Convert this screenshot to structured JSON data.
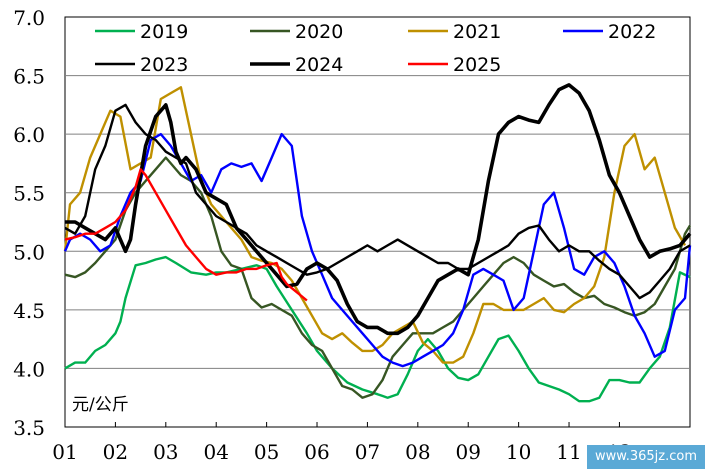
{
  "chart_data": {
    "type": "line",
    "unit_label": "元/公斤",
    "ylim": [
      3.5,
      7.0
    ],
    "yticks": [
      "3.5",
      "4.0",
      "4.5",
      "5.0",
      "5.5",
      "6.0",
      "6.5",
      "7.0"
    ],
    "ytick_values": [
      3.5,
      4.0,
      4.5,
      5.0,
      5.5,
      6.0,
      6.5,
      7.0
    ],
    "xticks": [
      "01",
      "02",
      "03",
      "04",
      "05",
      "06",
      "07",
      "08",
      "09",
      "10",
      "11",
      "12"
    ],
    "xlim": [
      0,
      12.4
    ],
    "legend_position": "top",
    "series": [
      {
        "name": "2019",
        "color": "#00b050",
        "width": 2.4,
        "x": [
          0,
          0.2,
          0.4,
          0.6,
          0.8,
          1.0,
          1.1,
          1.2,
          1.4,
          1.6,
          1.8,
          2.0,
          2.2,
          2.5,
          2.8,
          3.0,
          3.2,
          3.5,
          3.8,
          4.0,
          4.2,
          4.5,
          4.8,
          5.0,
          5.3,
          5.6,
          5.9,
          6.2,
          6.4,
          6.6,
          6.8,
          7.0,
          7.2,
          7.4,
          7.6,
          7.8,
          8.0,
          8.2,
          8.4,
          8.6,
          8.8,
          9.0,
          9.2,
          9.4,
          9.6,
          9.8,
          10.0,
          10.2,
          10.4,
          10.6,
          10.8,
          11.0,
          11.2,
          11.4,
          11.6,
          11.8,
          12.0,
          12.2,
          12.4
        ],
        "y": [
          4.0,
          4.05,
          4.05,
          4.15,
          4.2,
          4.3,
          4.4,
          4.6,
          4.88,
          4.9,
          4.93,
          4.95,
          4.9,
          4.82,
          4.8,
          4.82,
          4.82,
          4.85,
          4.88,
          4.85,
          4.7,
          4.5,
          4.3,
          4.15,
          4.0,
          3.88,
          3.82,
          3.78,
          3.75,
          3.78,
          3.95,
          4.15,
          4.25,
          4.15,
          4.0,
          3.92,
          3.9,
          3.95,
          4.1,
          4.25,
          4.28,
          4.15,
          4.0,
          3.88,
          3.85,
          3.82,
          3.78,
          3.72,
          3.72,
          3.75,
          3.9,
          3.9,
          3.88,
          3.88,
          4.0,
          4.1,
          4.35,
          4.82,
          4.78
        ]
      },
      {
        "name": "2020",
        "color": "#375623",
        "width": 2.4,
        "x": [
          0,
          0.2,
          0.4,
          0.6,
          0.8,
          1.0,
          1.2,
          1.4,
          1.6,
          1.8,
          2.0,
          2.1,
          2.3,
          2.5,
          2.7,
          2.9,
          3.1,
          3.3,
          3.5,
          3.7,
          3.9,
          4.1,
          4.3,
          4.5,
          4.7,
          4.9,
          5.1,
          5.3,
          5.5,
          5.7,
          5.9,
          6.1,
          6.3,
          6.5,
          6.7,
          6.9,
          7.1,
          7.3,
          7.5,
          7.7,
          7.9,
          8.1,
          8.3,
          8.5,
          8.7,
          8.9,
          9.1,
          9.3,
          9.5,
          9.7,
          9.9,
          10.1,
          10.3,
          10.5,
          10.7,
          10.9,
          11.1,
          11.3,
          11.5,
          11.7,
          11.9,
          12.1,
          12.3,
          12.4
        ],
        "y": [
          4.8,
          4.78,
          4.82,
          4.9,
          5.0,
          5.1,
          5.35,
          5.5,
          5.6,
          5.7,
          5.8,
          5.75,
          5.65,
          5.6,
          5.5,
          5.3,
          5.0,
          4.88,
          4.85,
          4.6,
          4.52,
          4.55,
          4.5,
          4.45,
          4.3,
          4.2,
          4.15,
          4.0,
          3.85,
          3.82,
          3.75,
          3.78,
          3.9,
          4.1,
          4.2,
          4.3,
          4.3,
          4.3,
          4.35,
          4.4,
          4.5,
          4.6,
          4.7,
          4.8,
          4.9,
          4.95,
          4.9,
          4.8,
          4.75,
          4.7,
          4.72,
          4.65,
          4.6,
          4.62,
          4.55,
          4.52,
          4.48,
          4.45,
          4.48,
          4.55,
          4.7,
          4.85,
          5.15,
          5.22
        ]
      },
      {
        "name": "2021",
        "color": "#bf9000",
        "width": 2.4,
        "x": [
          0,
          0.1,
          0.3,
          0.5,
          0.7,
          0.9,
          1.1,
          1.3,
          1.5,
          1.7,
          1.9,
          2.1,
          2.3,
          2.5,
          2.7,
          2.9,
          3.1,
          3.3,
          3.5,
          3.7,
          3.9,
          4.1,
          4.3,
          4.5,
          4.7,
          4.9,
          5.1,
          5.3,
          5.5,
          5.7,
          5.9,
          6.1,
          6.3,
          6.5,
          6.7,
          6.9,
          7.1,
          7.3,
          7.5,
          7.7,
          7.9,
          8.1,
          8.3,
          8.5,
          8.7,
          8.9,
          9.1,
          9.3,
          9.5,
          9.7,
          9.9,
          10.1,
          10.3,
          10.5,
          10.7,
          10.9,
          11.1,
          11.3,
          11.5,
          11.7,
          11.9,
          12.1,
          12.3
        ],
        "y": [
          5.0,
          5.4,
          5.5,
          5.8,
          6.0,
          6.2,
          6.15,
          5.7,
          5.75,
          5.8,
          6.3,
          6.35,
          6.4,
          6.0,
          5.6,
          5.4,
          5.3,
          5.2,
          5.1,
          4.95,
          4.92,
          4.9,
          4.85,
          4.75,
          4.6,
          4.45,
          4.3,
          4.25,
          4.3,
          4.22,
          4.15,
          4.15,
          4.2,
          4.3,
          4.35,
          4.4,
          4.22,
          4.15,
          4.05,
          4.05,
          4.1,
          4.3,
          4.55,
          4.55,
          4.5,
          4.5,
          4.5,
          4.55,
          4.6,
          4.5,
          4.48,
          4.55,
          4.6,
          4.7,
          4.95,
          5.5,
          5.9,
          6.0,
          5.7,
          5.8,
          5.5,
          5.2,
          5.05
        ]
      },
      {
        "name": "2022",
        "color": "#0000ff",
        "width": 2.4,
        "x": [
          0,
          0.1,
          0.3,
          0.5,
          0.7,
          0.9,
          1.1,
          1.3,
          1.5,
          1.7,
          1.9,
          2.1,
          2.3,
          2.5,
          2.7,
          2.9,
          3.1,
          3.3,
          3.5,
          3.7,
          3.9,
          4.1,
          4.3,
          4.5,
          4.7,
          4.9,
          5.1,
          5.3,
          5.5,
          5.7,
          5.9,
          6.1,
          6.3,
          6.5,
          6.7,
          6.9,
          7.1,
          7.3,
          7.5,
          7.7,
          7.9,
          8.1,
          8.3,
          8.5,
          8.7,
          8.9,
          9.1,
          9.3,
          9.5,
          9.7,
          9.9,
          10.1,
          10.3,
          10.5,
          10.7,
          10.9,
          11.1,
          11.3,
          11.5,
          11.7,
          11.9,
          12.1,
          12.3,
          12.4
        ],
        "y": [
          5.0,
          5.1,
          5.15,
          5.1,
          5.0,
          5.05,
          5.3,
          5.5,
          5.6,
          5.95,
          6.0,
          5.9,
          5.75,
          5.6,
          5.65,
          5.5,
          5.7,
          5.75,
          5.72,
          5.75,
          5.6,
          5.8,
          6.0,
          5.9,
          5.3,
          5.0,
          4.8,
          4.6,
          4.5,
          4.4,
          4.3,
          4.2,
          4.1,
          4.05,
          4.02,
          4.05,
          4.1,
          4.15,
          4.2,
          4.3,
          4.5,
          4.8,
          4.85,
          4.8,
          4.75,
          4.5,
          4.6,
          5.0,
          5.4,
          5.5,
          5.2,
          4.85,
          4.8,
          4.95,
          5.0,
          4.9,
          4.7,
          4.45,
          4.3,
          4.1,
          4.15,
          4.5,
          4.6,
          5.05
        ]
      },
      {
        "name": "2023",
        "color": "#000000",
        "width": 2.4,
        "x": [
          0,
          0.2,
          0.4,
          0.6,
          0.8,
          1.0,
          1.2,
          1.4,
          1.6,
          1.8,
          2.0,
          2.2,
          2.4,
          2.6,
          2.8,
          3.0,
          3.2,
          3.4,
          3.6,
          3.8,
          4.0,
          4.2,
          4.4,
          4.6,
          4.8,
          5.0,
          5.2,
          5.4,
          5.6,
          5.8,
          6.0,
          6.2,
          6.4,
          6.6,
          6.8,
          7.0,
          7.2,
          7.4,
          7.6,
          7.8,
          8.0,
          8.2,
          8.4,
          8.6,
          8.8,
          9.0,
          9.2,
          9.4,
          9.6,
          9.8,
          10.0,
          10.2,
          10.4,
          10.6,
          10.8,
          11.0,
          11.2,
          11.4,
          11.6,
          11.8,
          12.0,
          12.2,
          12.4
        ],
        "y": [
          5.2,
          5.15,
          5.3,
          5.7,
          5.9,
          6.2,
          6.25,
          6.1,
          6.0,
          5.95,
          5.85,
          5.8,
          5.75,
          5.5,
          5.4,
          5.3,
          5.25,
          5.2,
          5.15,
          5.05,
          5.0,
          4.95,
          4.9,
          4.85,
          4.8,
          4.82,
          4.85,
          4.9,
          4.95,
          5.0,
          5.05,
          5.0,
          5.05,
          5.1,
          5.05,
          5.0,
          4.95,
          4.9,
          4.9,
          4.85,
          4.85,
          4.9,
          4.95,
          5.0,
          5.05,
          5.15,
          5.2,
          5.22,
          5.1,
          5.0,
          5.05,
          5.0,
          5.0,
          4.92,
          4.85,
          4.8,
          4.7,
          4.6,
          4.65,
          4.75,
          4.85,
          5.0,
          5.05
        ]
      },
      {
        "name": "2024",
        "color": "#000000",
        "width": 3.6,
        "x": [
          0,
          0.2,
          0.4,
          0.6,
          0.8,
          1.0,
          1.1,
          1.2,
          1.3,
          1.4,
          1.6,
          1.8,
          2.0,
          2.1,
          2.2,
          2.3,
          2.4,
          2.6,
          2.8,
          3.0,
          3.2,
          3.4,
          3.6,
          3.8,
          4.0,
          4.2,
          4.4,
          4.6,
          4.8,
          5.0,
          5.2,
          5.4,
          5.6,
          5.8,
          6.0,
          6.2,
          6.4,
          6.6,
          6.8,
          7.0,
          7.2,
          7.4,
          7.6,
          7.8,
          8.0,
          8.2,
          8.4,
          8.6,
          8.8,
          9.0,
          9.2,
          9.4,
          9.6,
          9.8,
          10.0,
          10.2,
          10.4,
          10.6,
          10.8,
          11.0,
          11.2,
          11.4,
          11.6,
          11.8,
          12.0,
          12.2,
          12.4
        ],
        "y": [
          5.25,
          5.25,
          5.2,
          5.15,
          5.1,
          5.2,
          5.1,
          5.0,
          5.1,
          5.4,
          5.9,
          6.15,
          6.25,
          6.1,
          5.85,
          5.75,
          5.8,
          5.7,
          5.5,
          5.45,
          5.4,
          5.2,
          5.1,
          5.0,
          4.9,
          4.8,
          4.7,
          4.72,
          4.85,
          4.9,
          4.85,
          4.75,
          4.55,
          4.4,
          4.35,
          4.35,
          4.3,
          4.3,
          4.35,
          4.45,
          4.6,
          4.75,
          4.8,
          4.85,
          4.8,
          5.1,
          5.6,
          6.0,
          6.1,
          6.15,
          6.12,
          6.1,
          6.25,
          6.38,
          6.42,
          6.35,
          6.2,
          5.95,
          5.65,
          5.5,
          5.3,
          5.1,
          4.95,
          5.0,
          5.02,
          5.05,
          5.15
        ]
      },
      {
        "name": "2025",
        "color": "#ff0000",
        "width": 2.4,
        "x": [
          0,
          0.2,
          0.4,
          0.6,
          0.8,
          1.0,
          1.2,
          1.4,
          1.5,
          1.6,
          1.8,
          2.0,
          2.2,
          2.4,
          2.6,
          2.8,
          3.0,
          3.2,
          3.4,
          3.6,
          3.8,
          4.0,
          4.2,
          4.3,
          4.4,
          4.6,
          4.8
        ],
        "y": [
          5.1,
          5.12,
          5.15,
          5.15,
          5.2,
          5.25,
          5.35,
          5.55,
          5.7,
          5.65,
          5.5,
          5.35,
          5.2,
          5.05,
          4.95,
          4.85,
          4.8,
          4.82,
          4.82,
          4.85,
          4.85,
          4.88,
          4.9,
          4.78,
          4.72,
          4.65,
          4.58
        ]
      }
    ]
  }
}
